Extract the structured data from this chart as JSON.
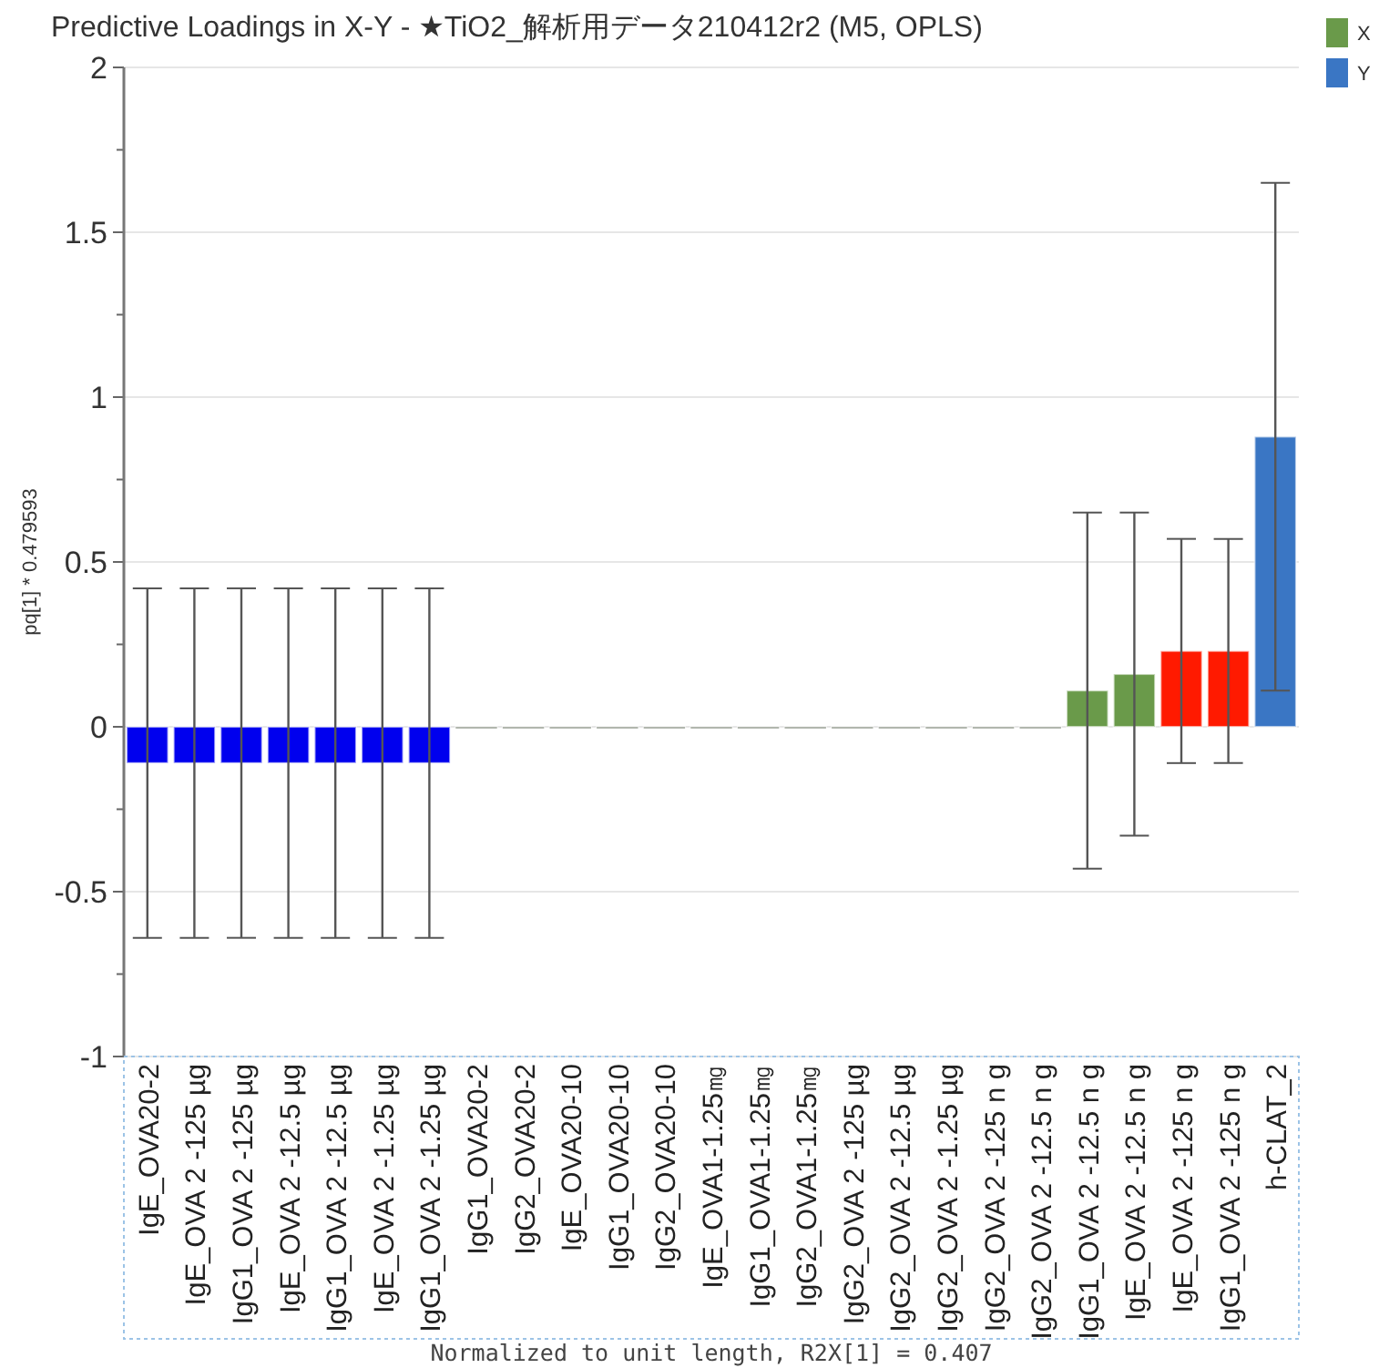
{
  "chart_data": {
    "type": "bar",
    "title": "Predictive Loadings in X-Y - ★TiO2_解析用データ210412r2 (M5, OPLS)",
    "xlabel": "Normalized to unit length, R2X[1] = 0.407",
    "ylabel": "pq[1] * 0.479593",
    "categories": [
      "IgE_OVA20-2",
      "IgE_OVA 2 -125 µg",
      "IgG1_OVA 2 -125 µg",
      "IgE_OVA 2 -12.5 µg",
      "IgG1_OVA 2 -12.5 µg",
      "IgE_OVA 2 -1.25 µg",
      "IgG1_OVA 2 -1.25 µg",
      "IgG1_OVA20-2",
      "IgG2_OVA20-2",
      "IgE_OVA20-10",
      "IgG1_OVA20-10",
      "IgG2_OVA20-10",
      "IgE_OVA1-1.25㎎",
      "IgG1_OVA1-1.25㎎",
      "IgG2_OVA1-1.25㎎",
      "IgG2_OVA 2 -125 µg",
      "IgG2_OVA 2 -12.5 µg",
      "IgG2_OVA 2 -1.25 µg",
      "IgG2_OVA 2 -125 n g",
      "IgG2_OVA 2 -12.5 n g",
      "IgG1_OVA 2 -12.5 n g",
      "IgE_OVA 2 -12.5 n g",
      "IgE_OVA 2 -125 n g",
      "IgG1_OVA 2 -125 n g",
      "h-CLAT_2"
    ],
    "series": [
      {
        "name": "X",
        "color": "#6a9a4a",
        "colors": [
          "#0000ee",
          "#0000ee",
          "#0000ee",
          "#0000ee",
          "#0000ee",
          "#0000ee",
          "#0000ee",
          "#3d4a33",
          "#3d4a33",
          "#3d4a33",
          "#3d4a33",
          "#3d4a33",
          "#3d4a33",
          "#3d4a33",
          "#3d4a33",
          "#3d4a33",
          "#3d4a33",
          "#3d4a33",
          "#3d4a33",
          "#3d4a33",
          "#6a9a4a",
          "#6a9a4a",
          "#ff1a00",
          "#ff1a00",
          null
        ],
        "values": [
          -0.11,
          -0.11,
          -0.11,
          -0.11,
          -0.11,
          -0.11,
          -0.11,
          0,
          0,
          0,
          0,
          0,
          0,
          0,
          0,
          0,
          0,
          0,
          0,
          0,
          0.11,
          0.16,
          0.23,
          0.23,
          null
        ],
        "errors": [
          0.53,
          0.53,
          0.53,
          0.53,
          0.53,
          0.53,
          0.53,
          null,
          null,
          null,
          null,
          null,
          null,
          null,
          null,
          null,
          null,
          null,
          null,
          null,
          0.54,
          0.49,
          0.34,
          0.34,
          null
        ]
      },
      {
        "name": "Y",
        "color": "#3a76c4",
        "values": [
          null,
          null,
          null,
          null,
          null,
          null,
          null,
          null,
          null,
          null,
          null,
          null,
          null,
          null,
          null,
          null,
          null,
          null,
          null,
          null,
          null,
          null,
          null,
          null,
          0.88
        ],
        "errors": [
          null,
          null,
          null,
          null,
          null,
          null,
          null,
          null,
          null,
          null,
          null,
          null,
          null,
          null,
          null,
          null,
          null,
          null,
          null,
          null,
          null,
          null,
          null,
          null,
          0.77
        ]
      }
    ],
    "ylim": [
      -1,
      2
    ],
    "yticks": [
      -1,
      {
        "value": -0.75,
        "label": null
      },
      -0.5,
      {
        "value": -0.25,
        "label": null
      },
      0,
      {
        "value": 0.25,
        "label": null
      },
      0.5,
      {
        "value": 0.75,
        "label": null
      },
      1,
      {
        "value": 1.25,
        "label": null
      },
      1.5,
      {
        "value": 1.75,
        "label": null
      },
      2
    ],
    "grid": "y",
    "legend": "top right"
  }
}
